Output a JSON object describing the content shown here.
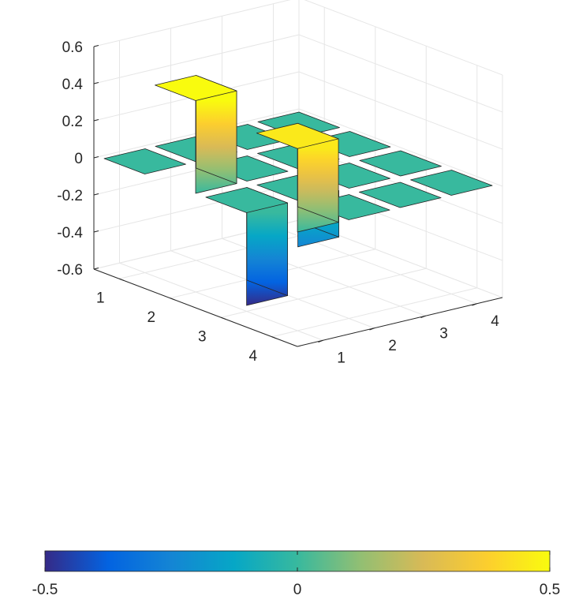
{
  "chart_data": {
    "type": "bar3",
    "title": "",
    "xlabel": "",
    "ylabel": "",
    "zlabel": "",
    "rows": [
      1,
      2,
      3,
      4
    ],
    "cols": [
      1,
      2,
      3,
      4
    ],
    "values": [
      [
        0,
        0,
        0,
        0
      ],
      [
        0.5,
        0,
        0,
        0
      ],
      [
        -0.5,
        -0.25,
        0,
        0
      ],
      [
        0.45,
        0,
        0,
        0
      ]
    ],
    "zlim": [
      -0.6,
      0.6
    ],
    "zticks": [
      "-0.6",
      "-0.4",
      "-0.2",
      "0",
      "0.2",
      "0.4",
      "0.6"
    ],
    "xticks": [
      "1",
      "2",
      "3",
      "4"
    ],
    "yticks": [
      "1",
      "2",
      "3",
      "4"
    ],
    "grid": true,
    "colorbar": {
      "location": "bottom",
      "range": [
        -0.5,
        0.5
      ],
      "ticks": [
        "-0.5",
        "0",
        "0.5"
      ]
    },
    "colormap": "parula"
  }
}
